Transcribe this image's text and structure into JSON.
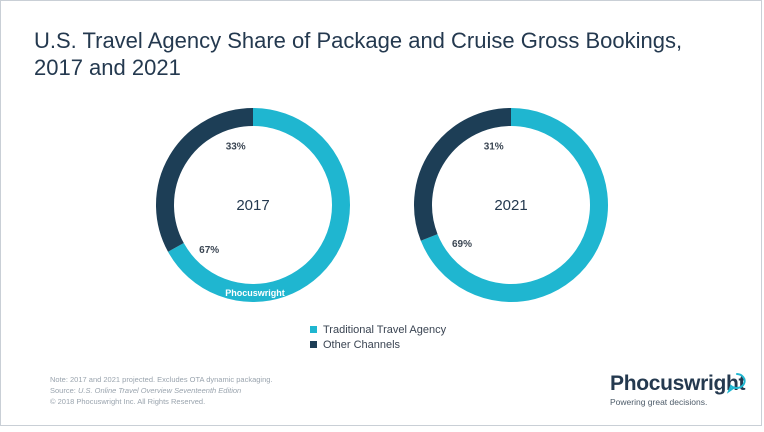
{
  "title": {
    "line1": "U.S. Travel Agency Share of Package and Cruise Gross Bookings,",
    "line2": "2017 and 2021"
  },
  "colors": {
    "traditional": "#1fb6d0",
    "other": "#1d3e56",
    "title": "#24394f"
  },
  "chart_data": [
    {
      "type": "pie",
      "variant": "donut",
      "center_label": "2017",
      "categories": [
        "Traditional Travel Agency",
        "Other Channels"
      ],
      "values": [
        67,
        33
      ],
      "data_labels": [
        "67%",
        "33%"
      ]
    },
    {
      "type": "pie",
      "variant": "donut",
      "center_label": "2021",
      "categories": [
        "Traditional Travel Agency",
        "Other Channels"
      ],
      "values": [
        69,
        31
      ],
      "data_labels": [
        "69%",
        "31%"
      ]
    }
  ],
  "legend": {
    "placement": "bottom-center",
    "items": [
      {
        "label": "Traditional Travel Agency",
        "color": "#1fb6d0"
      },
      {
        "label": "Other Channels",
        "color": "#1d3e56"
      }
    ]
  },
  "notes": {
    "note": "Note: 2017 and 2021 projected. Excludes OTA dynamic packaging.",
    "source_prefix": "Source: ",
    "source_title": "U.S. Online Travel Overview Seventeenth Edition",
    "copyright": "© 2018 Phocuswright Inc. All Rights Reserved."
  },
  "watermark": "Phocuswright",
  "brand": {
    "name": "Phocuswright",
    "tagline": "Powering great decisions."
  }
}
